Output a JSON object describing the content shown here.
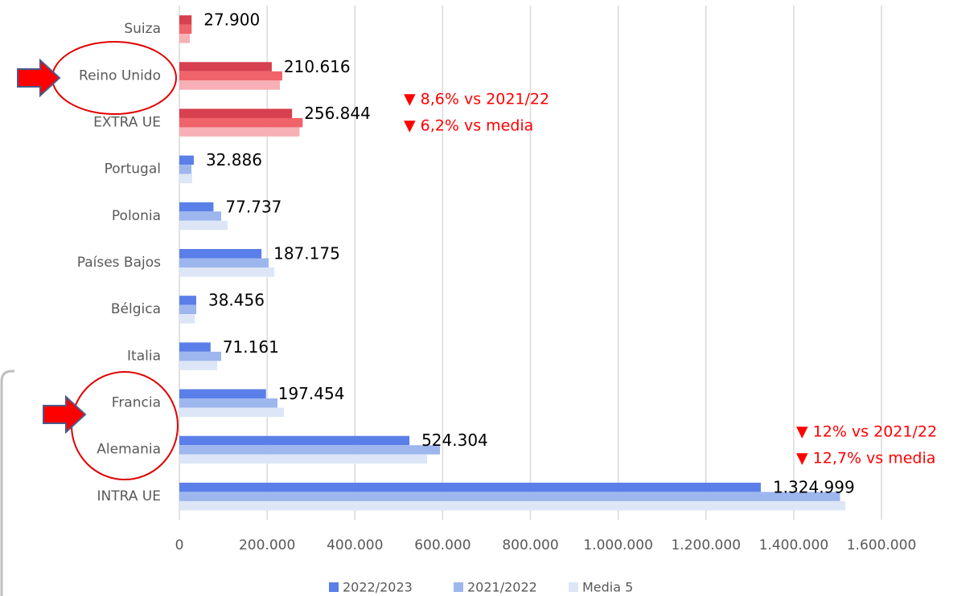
{
  "chart_data": {
    "type": "bar",
    "orientation": "horizontal",
    "categories": [
      "Suiza",
      "Reino Unido",
      "EXTRA UE",
      "Portugal",
      "Polonia",
      "Países Bajos",
      "Bélgica",
      "Italia",
      "Francia",
      "Alemania",
      "INTRA UE"
    ],
    "series": [
      {
        "name": "2022/2023",
        "color": "#5b7fe8",
        "colors": [
          "#d6404f",
          "#d6404f",
          "#d6404f",
          "#5b7fe8",
          "#5b7fe8",
          "#5b7fe8",
          "#5b7fe8",
          "#5b7fe8",
          "#5b7fe8",
          "#5b7fe8",
          "#5b7fe8"
        ],
        "values": [
          27900,
          210616,
          256844,
          32886,
          77737,
          187175,
          38456,
          71161,
          197454,
          524304,
          1324999
        ],
        "value_labels": [
          "27.900",
          "210.616",
          "256.844",
          "32.886",
          "77.737",
          "187.175",
          "38.456",
          "71.161",
          "197.454",
          "524.304",
          "1.324.999"
        ]
      },
      {
        "name": "2021/2022",
        "color": "#9db6ee",
        "colors": [
          "#f0636a",
          "#f0636a",
          "#f0636a",
          "#9db6ee",
          "#9db6ee",
          "#9db6ee",
          "#9db6ee",
          "#9db6ee",
          "#9db6ee",
          "#9db6ee",
          "#9db6ee"
        ],
        "values": [
          28000,
          234600,
          281000,
          27500,
          95300,
          203400,
          38500,
          95300,
          223600,
          593800,
          1505700
        ]
      },
      {
        "name": "Media 5",
        "color": "#dce6f6",
        "colors": [
          "#f7b0b5",
          "#f7b0b5",
          "#f7b0b5",
          "#dce6f6",
          "#dce6f6",
          "#dce6f6",
          "#dce6f6",
          "#dce6f6",
          "#dce6f6",
          "#dce6f6",
          "#dce6f6"
        ],
        "values": [
          23800,
          229100,
          273800,
          29300,
          110000,
          216300,
          34800,
          86100,
          238300,
          564500,
          1517800
        ]
      }
    ],
    "xlim": [
      0,
      1600000
    ],
    "xticks": [
      0,
      {
        "value": 200000,
        "label": "200.000"
      },
      {
        "value": 400000,
        "label": "400.000"
      },
      {
        "value": 600000,
        "label": "600.000"
      },
      {
        "value": 800000,
        "label": "800.000"
      },
      {
        "value": 1000000,
        "label": "1.000.000"
      },
      {
        "value": 1200000,
        "label": "1.200.000"
      },
      {
        "value": 1400000,
        "label": "1.400.000"
      },
      {
        "value": 1600000,
        "label": "1.600.000"
      }
    ],
    "grid": true,
    "legend": "bottom",
    "annotations": [
      "▼ 8,6% vs 2021/22",
      "▼ 6,2% vs media",
      "▼ 12% vs 2021/22",
      "▼ 12,7% vs media"
    ]
  }
}
